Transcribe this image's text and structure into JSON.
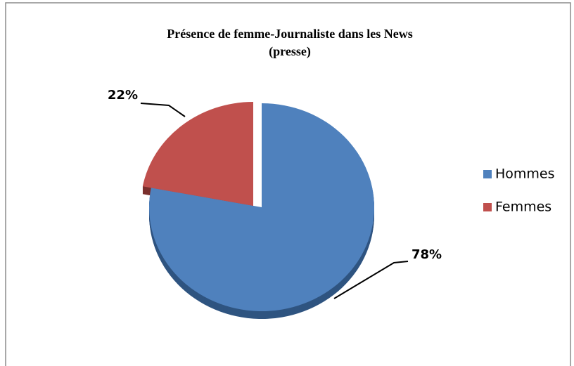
{
  "chart_data": {
    "type": "pie",
    "title": [
      "Présence de femme-Journaliste dans les News",
      "(presse)"
    ],
    "categories": [
      "Hommes",
      "Femmes"
    ],
    "values": [
      78,
      22
    ],
    "value_labels": [
      "78%",
      "22%"
    ],
    "colors": [
      "#4f81bd",
      "#c0504d"
    ],
    "side_colors": [
      "#2f5480",
      "#7a2f2d"
    ],
    "legend": "right"
  }
}
